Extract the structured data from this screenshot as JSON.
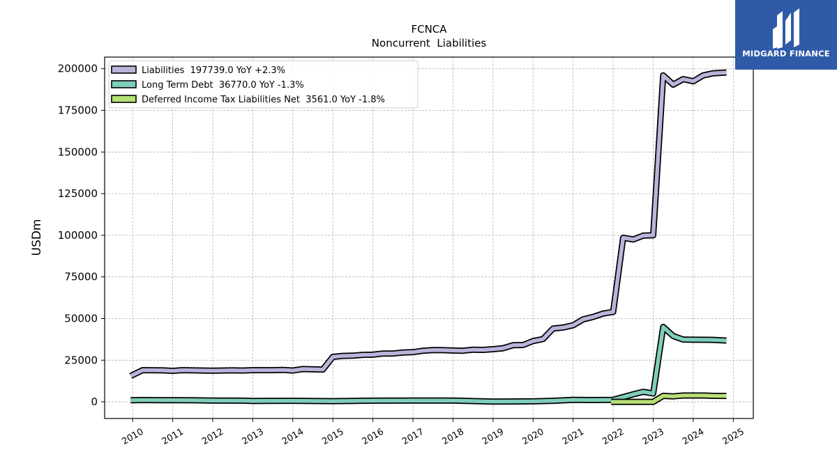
{
  "chart_data": {
    "type": "line",
    "title": "FCNCA",
    "subtitle": "Noncurrent  Liabilities",
    "ylabel": "USDm",
    "xlabel": "",
    "ylim": [
      -10000,
      207000
    ],
    "xlim": [
      2009.3,
      2025.5
    ],
    "yticks": [
      0,
      25000,
      50000,
      75000,
      100000,
      125000,
      150000,
      175000,
      200000
    ],
    "yticklabels": [
      "0",
      "25000",
      "50000",
      "75000",
      "100000",
      "125000",
      "150000",
      "175000",
      "200000"
    ],
    "xticks": [
      2010,
      2011,
      2012,
      2013,
      2014,
      2015,
      2016,
      2017,
      2018,
      2019,
      2020,
      2021,
      2022,
      2023,
      2024,
      2025
    ],
    "xticklabels": [
      "2010",
      "2011",
      "2012",
      "2013",
      "2014",
      "2015",
      "2016",
      "2017",
      "2018",
      "2019",
      "2020",
      "2021",
      "2022",
      "2023",
      "2024",
      "2025"
    ],
    "grid": true,
    "legend_position": "top-left",
    "series": [
      {
        "name": "Liabilities  197739.0 YoY +2.3%",
        "color": "#b9b4da",
        "points": [
          [
            2009.95,
            15500
          ],
          [
            2010.25,
            19000
          ],
          [
            2010.75,
            18900
          ],
          [
            2011.0,
            18600
          ],
          [
            2011.25,
            19000
          ],
          [
            2011.75,
            18800
          ],
          [
            2012.0,
            18700
          ],
          [
            2012.5,
            18900
          ],
          [
            2012.75,
            18800
          ],
          [
            2013.0,
            19000
          ],
          [
            2013.5,
            19000
          ],
          [
            2013.75,
            19200
          ],
          [
            2014.0,
            18800
          ],
          [
            2014.25,
            19700
          ],
          [
            2014.75,
            19400
          ],
          [
            2015.0,
            27000
          ],
          [
            2015.25,
            27600
          ],
          [
            2015.5,
            27700
          ],
          [
            2015.75,
            28200
          ],
          [
            2016.0,
            28300
          ],
          [
            2016.25,
            29000
          ],
          [
            2016.5,
            29000
          ],
          [
            2016.75,
            29600
          ],
          [
            2017.0,
            29800
          ],
          [
            2017.25,
            30700
          ],
          [
            2017.5,
            31100
          ],
          [
            2017.75,
            31000
          ],
          [
            2018.0,
            30800
          ],
          [
            2018.25,
            30700
          ],
          [
            2018.5,
            31300
          ],
          [
            2018.75,
            31200
          ],
          [
            2019.0,
            31600
          ],
          [
            2019.25,
            32200
          ],
          [
            2019.5,
            34000
          ],
          [
            2019.75,
            34100
          ],
          [
            2020.0,
            36500
          ],
          [
            2020.25,
            37700
          ],
          [
            2020.5,
            44000
          ],
          [
            2020.75,
            44600
          ],
          [
            2021.0,
            46000
          ],
          [
            2021.25,
            49500
          ],
          [
            2021.5,
            51000
          ],
          [
            2021.75,
            53000
          ],
          [
            2022.0,
            54000
          ],
          [
            2022.25,
            98500
          ],
          [
            2022.5,
            97500
          ],
          [
            2022.75,
            99800
          ],
          [
            2023.0,
            100000
          ],
          [
            2023.25,
            196000
          ],
          [
            2023.5,
            190500
          ],
          [
            2023.75,
            193800
          ],
          [
            2024.0,
            192500
          ],
          [
            2024.25,
            196000
          ],
          [
            2024.5,
            197300
          ],
          [
            2024.83,
            197739
          ]
        ]
      },
      {
        "name": "Long Term Debt  36770.0 YoY -1.3%",
        "color": "#7fcdbb",
        "points": [
          [
            2009.95,
            900
          ],
          [
            2010.25,
            1100
          ],
          [
            2010.75,
            1000
          ],
          [
            2011.5,
            900
          ],
          [
            2012.0,
            800
          ],
          [
            2012.75,
            700
          ],
          [
            2013.0,
            500
          ],
          [
            2014.0,
            600
          ],
          [
            2015.0,
            400
          ],
          [
            2016.0,
            700
          ],
          [
            2017.0,
            800
          ],
          [
            2018.0,
            800
          ],
          [
            2019.0,
            100
          ],
          [
            2020.0,
            300
          ],
          [
            2020.5,
            600
          ],
          [
            2021.0,
            1200
          ],
          [
            2021.5,
            1100
          ],
          [
            2022.0,
            1200
          ],
          [
            2022.5,
            4500
          ],
          [
            2022.75,
            6000
          ],
          [
            2023.0,
            5000
          ],
          [
            2023.25,
            45000
          ],
          [
            2023.5,
            39500
          ],
          [
            2023.75,
            37400
          ],
          [
            2024.0,
            37300
          ],
          [
            2024.5,
            37200
          ],
          [
            2024.83,
            36770
          ]
        ]
      },
      {
        "name": "Deferred Income Tax Liabilities Net  3561.0 YoY -1.8%",
        "color": "#b7e075",
        "points": [
          [
            2021.95,
            0
          ],
          [
            2022.25,
            0
          ],
          [
            2022.5,
            0
          ],
          [
            2022.75,
            0
          ],
          [
            2023.0,
            0
          ],
          [
            2023.25,
            3600
          ],
          [
            2023.5,
            3300
          ],
          [
            2023.75,
            3800
          ],
          [
            2024.0,
            3800
          ],
          [
            2024.25,
            3800
          ],
          [
            2024.5,
            3600
          ],
          [
            2024.83,
            3561
          ]
        ]
      }
    ]
  },
  "logo": {
    "text": "MIDGARD FINANCE",
    "background": "#2f5aa8",
    "icon": "stylized-m-icon"
  }
}
